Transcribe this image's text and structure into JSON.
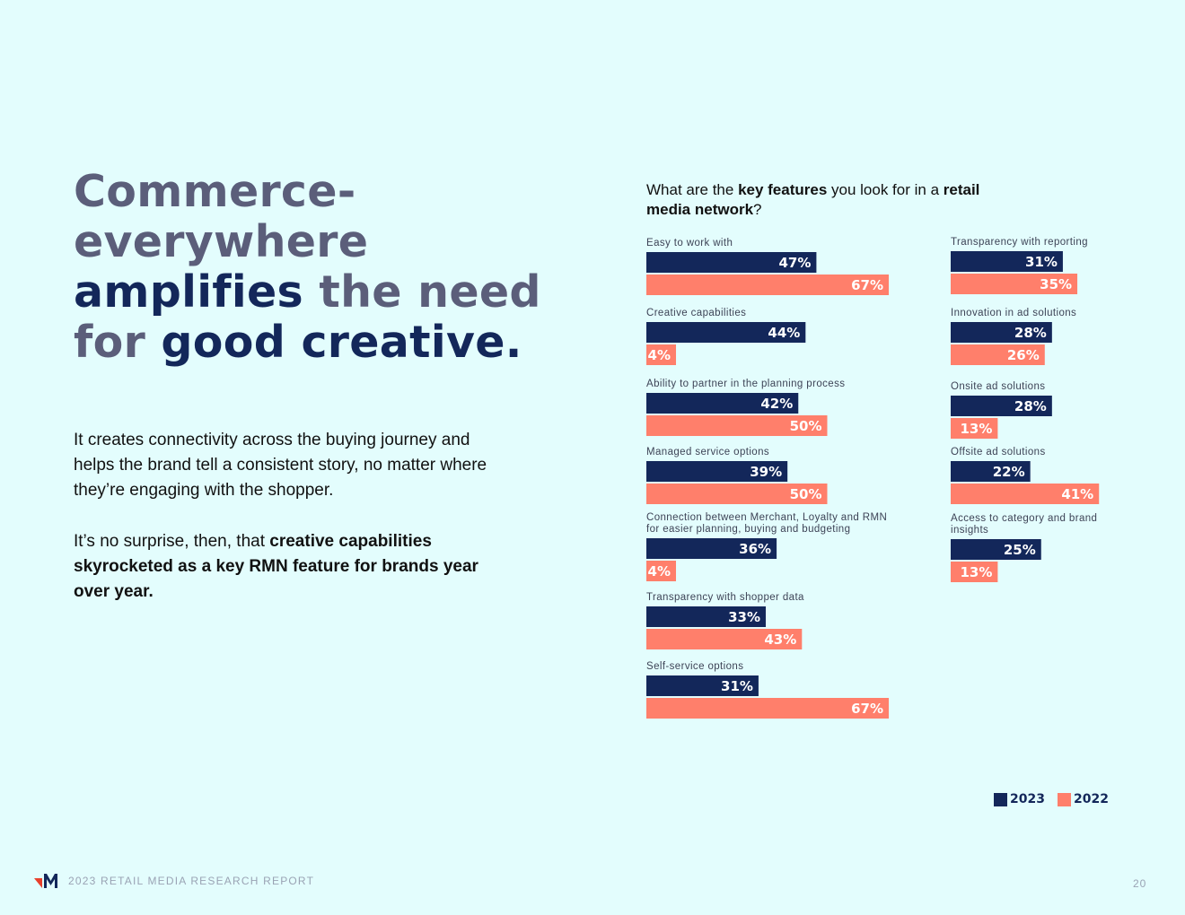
{
  "headline": {
    "part1": "Commerce-everywhere ",
    "part2": "amplifies",
    "part3": " the need for ",
    "part4": "good creative."
  },
  "paragraph1": "It creates connectivity across the buying journey and helps the brand tell a consistent story, no matter where they’re engaging with the shopper.",
  "paragraph2": {
    "lead": "It’s no surprise, then, that ",
    "bold": "creative capabilities skyrocketed as a key RMN feature for brands year over year."
  },
  "question": {
    "t1": "What are the ",
    "b1": "key features",
    "t2": " you look for in a ",
    "b2": "retail media network",
    "t3": "?"
  },
  "colors": {
    "series_2023": "#13275a",
    "series_2022": "#ff7f6b",
    "bg": "#e3fdfd",
    "logo_red": "#e8402c"
  },
  "chart_data": {
    "type": "bar",
    "orientation": "horizontal",
    "unit": "%",
    "series": [
      {
        "name": "2023",
        "color": "#13275a"
      },
      {
        "name": "2022",
        "color": "#ff7f6b"
      }
    ],
    "columns": [
      [
        {
          "label": "Easy to work with",
          "v2023": 47,
          "v2022": 67
        },
        {
          "label": "Creative capabilities",
          "v2023": 44,
          "v2022": 4
        },
        {
          "label": "Ability to partner in the planning process",
          "v2023": 42,
          "v2022": 50
        },
        {
          "label": "Managed service options",
          "v2023": 39,
          "v2022": 50
        },
        {
          "label": "Connection between Merchant, Loyalty and RMN\nfor easier planning, buying and budgeting",
          "v2023": 36,
          "v2022": 4
        },
        {
          "label": "Transparency with shopper data",
          "v2023": 33,
          "v2022": 43
        },
        {
          "label": "Self-service options",
          "v2023": 31,
          "v2022": 67
        }
      ],
      [
        {
          "label": "Transparency with reporting",
          "v2023": 31,
          "v2022": 35
        },
        {
          "label": "Innovation in ad solutions",
          "v2023": 28,
          "v2022": 26
        },
        {
          "label": "Onsite ad solutions",
          "v2023": 28,
          "v2022": 13
        },
        {
          "label": "Offsite ad solutions",
          "v2023": 22,
          "v2022": 41
        },
        {
          "label": "Access to category and brand\ninsights",
          "v2023": 25,
          "v2022": 13
        }
      ]
    ]
  },
  "legend": {
    "label_2023": "2023",
    "label_2022": "2022"
  },
  "footer": {
    "text": "2023 RETAIL MEDIA RESEARCH REPORT",
    "page": "20"
  }
}
